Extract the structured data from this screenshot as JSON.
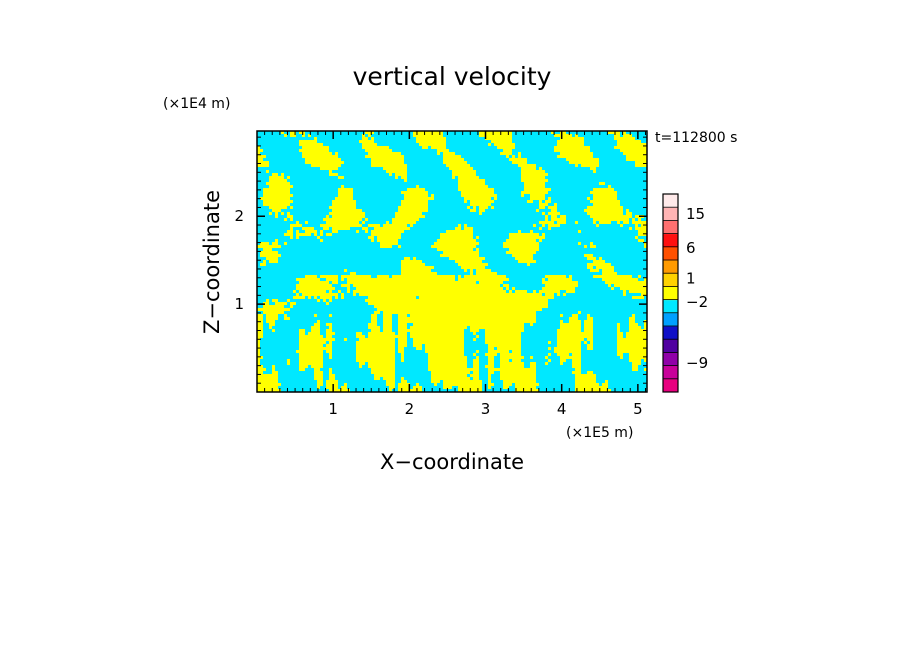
{
  "chart_data": {
    "type": "heatmap",
    "title": "vertical velocity",
    "xlabel": "X−coordinate",
    "ylabel": "Z−coordinate",
    "x_unit": "(×1E5 m)",
    "y_unit": "(×1E4 m)",
    "time_label": "t=112800 s",
    "xlim": [
      0,
      5.12
    ],
    "ylim": [
      0,
      2.97
    ],
    "x_ticks": [
      {
        "value": 1,
        "label": "1"
      },
      {
        "value": 2,
        "label": "2"
      },
      {
        "value": 3,
        "label": "3"
      },
      {
        "value": 4,
        "label": "4"
      },
      {
        "value": 5,
        "label": "5"
      }
    ],
    "y_ticks": [
      {
        "value": 1,
        "label": "1"
      },
      {
        "value": 2,
        "label": "2"
      }
    ],
    "field_colors": {
      "upward": "#ffff00",
      "downward": "#00e8ff"
    },
    "colorbar": {
      "levels": [
        {
          "color": "#e8007f"
        },
        {
          "color": "#c8009a"
        },
        {
          "color": "#9000a8"
        },
        {
          "color": "#5000a0"
        },
        {
          "color": "#1010c8"
        },
        {
          "color": "#00a0ff"
        },
        {
          "color": "#00e8ff"
        },
        {
          "color": "#ffff00"
        },
        {
          "color": "#ffd200"
        },
        {
          "color": "#ff9a00"
        },
        {
          "color": "#ff5000"
        },
        {
          "color": "#ff1010"
        },
        {
          "color": "#ff7070"
        },
        {
          "color": "#ffb4b4"
        },
        {
          "color": "#ffeaea"
        }
      ],
      "labels": [
        {
          "text": "15",
          "level": 13.5
        },
        {
          "text": "6",
          "level": 10.9
        },
        {
          "text": "1",
          "level": 8.6
        },
        {
          "text": "−2",
          "level": 6.8
        },
        {
          "text": "−9",
          "level": 2.2
        }
      ]
    }
  }
}
